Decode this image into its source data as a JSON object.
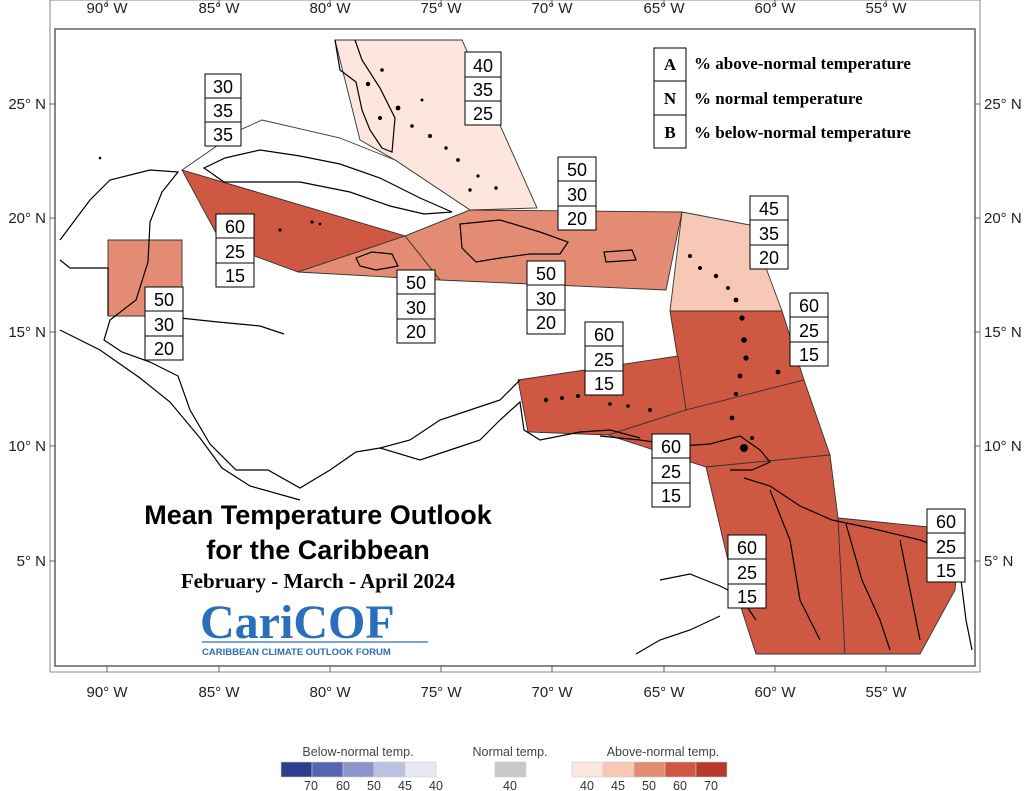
{
  "title": {
    "line1": "Mean Temperature Outlook",
    "line2": "for the Caribbean",
    "period": "February - March - April 2024"
  },
  "logo": {
    "name": "CariCOF",
    "main_left": "Cari",
    "main_right": "COF",
    "subtitle": "CARIBBEAN CLIMATE OUTLOOK FORUM"
  },
  "axes": {
    "lon_labels": [
      "90° W",
      "85° W",
      "80° W",
      "75° W",
      "70° W",
      "65° W",
      "60° W",
      "55° W"
    ],
    "lat_labels": [
      "25° N",
      "20° N",
      "15° N",
      "10° N",
      "5° N"
    ]
  },
  "key": [
    {
      "letter": "A",
      "text": "% above-normal temperature"
    },
    {
      "letter": "N",
      "text": "% normal temperature"
    },
    {
      "letter": "B",
      "text": "% below-normal temperature"
    }
  ],
  "regions": [
    {
      "id": "bahamas",
      "A": "40",
      "N": "35",
      "B": "25",
      "fill": "#fce6dd"
    },
    {
      "id": "cuba",
      "A": "30",
      "N": "35",
      "B": "35",
      "fill": "#ffffff"
    },
    {
      "id": "west-cuba-cayman",
      "A": "60",
      "N": "25",
      "B": "15",
      "fill": "#cf5843"
    },
    {
      "id": "hispaniola-pr",
      "A": "50",
      "N": "30",
      "B": "20",
      "fill": "#e48b73"
    },
    {
      "id": "jamaica",
      "A": "50",
      "N": "30",
      "B": "20",
      "fill": "#e48b73"
    },
    {
      "id": "hispaniola-south",
      "A": "50",
      "N": "30",
      "B": "20",
      "fill": "#e48b73"
    },
    {
      "id": "belize",
      "A": "50",
      "N": "30",
      "B": "20",
      "fill": "#e48b73"
    },
    {
      "id": "leeward-islands",
      "A": "45",
      "N": "35",
      "B": "20",
      "fill": "#f8c8b6"
    },
    {
      "id": "windward-islands",
      "A": "60",
      "N": "25",
      "B": "15",
      "fill": "#cf5843"
    },
    {
      "id": "abc-islands",
      "A": "60",
      "N": "25",
      "B": "15",
      "fill": "#cf5843"
    },
    {
      "id": "trinidad",
      "A": "60",
      "N": "25",
      "B": "15",
      "fill": "#cf5843"
    },
    {
      "id": "guyana",
      "A": "60",
      "N": "25",
      "B": "15",
      "fill": "#cf5843"
    },
    {
      "id": "suriname-guiana",
      "A": "60",
      "N": "25",
      "B": "15",
      "fill": "#cf5843"
    }
  ],
  "legend": {
    "below_title": "Below-normal temp.",
    "normal_title": "Normal temp.",
    "above_title": "Above-normal temp.",
    "below_labels": [
      "70",
      "60",
      "50",
      "45",
      "40"
    ],
    "normal_labels": [
      "40"
    ],
    "above_labels": [
      "40",
      "45",
      "50",
      "60",
      "70"
    ],
    "below_colors": [
      "#2d3e8f",
      "#5565b0",
      "#8c95cb",
      "#bcc1e3",
      "#e6e8f5"
    ],
    "normal_colors": [
      "#c8c8c8"
    ],
    "above_colors": [
      "#fce6dd",
      "#f8c8b6",
      "#e48b73",
      "#cf5843",
      "#b83a2c"
    ]
  }
}
